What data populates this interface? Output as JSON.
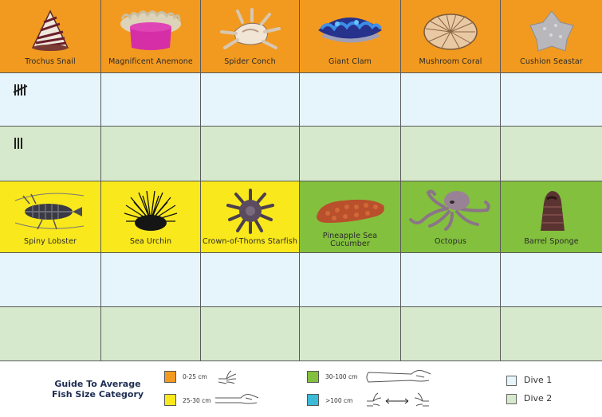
{
  "row1_animals": [
    {
      "name": "Trochus Snail",
      "icon": "trochus-snail-icon",
      "category_color": "#f29a1f"
    },
    {
      "name": "Magnificent Anemone",
      "icon": "anemone-icon",
      "category_color": "#f29a1f"
    },
    {
      "name": "Spider Conch",
      "icon": "spider-conch-icon",
      "category_color": "#f29a1f"
    },
    {
      "name": "Giant Clam",
      "icon": "giant-clam-icon",
      "category_color": "#f29a1f"
    },
    {
      "name": "Mushroom Coral",
      "icon": "mushroom-coral-icon",
      "category_color": "#f29a1f"
    },
    {
      "name": "Cushion Seastar",
      "icon": "cushion-seastar-icon",
      "category_color": "#f29a1f"
    }
  ],
  "row2_animals": [
    {
      "name": "Spiny Lobster",
      "icon": "spiny-lobster-icon",
      "category_color": "#f9e81b"
    },
    {
      "name": "Sea Urchin",
      "icon": "sea-urchin-icon",
      "category_color": "#f9e81b"
    },
    {
      "name": "Crown-of-Thorns Starfish",
      "icon": "crown-of-thorns-icon",
      "category_color": "#f9e81b"
    },
    {
      "name": "Pineapple Sea Cucumber",
      "icon": "sea-cucumber-icon",
      "category_color": "#83c03d"
    },
    {
      "name": "Octopus",
      "icon": "octopus-icon",
      "category_color": "#83c03d"
    },
    {
      "name": "Barrel Sponge",
      "icon": "barrel-sponge-icon",
      "category_color": "#83c03d"
    }
  ],
  "tallies": {
    "trochus_dive1": 5,
    "trochus_dive2": 3
  },
  "legend": {
    "title_line1": "Guide To Average",
    "title_line2": "Fish Size Category",
    "sizes": [
      {
        "label": "0-25 cm",
        "color": "#f29a1f",
        "icon": "hand-icon"
      },
      {
        "label": "25-30 cm",
        "color": "#f9e81b",
        "icon": "forearm-icon"
      },
      {
        "label": "30-100 cm",
        "color": "#83c03d",
        "icon": "full-arm-icon"
      },
      {
        "label": ">100 cm",
        "color": "#3bbbd6",
        "icon": "two-hands-span-icon"
      }
    ],
    "dives": [
      {
        "label": "Dive 1",
        "color": "#e6f4fb"
      },
      {
        "label": "Dive 2",
        "color": "#d6e9cc"
      }
    ]
  }
}
